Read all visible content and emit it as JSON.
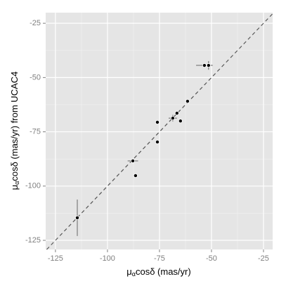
{
  "chart_data": {
    "type": "scatter",
    "x_label": [
      "μ",
      "α",
      "cosδ (mas/yr)"
    ],
    "y_label": [
      "μ",
      "α",
      "cosδ (mas/yr) from UCAC4"
    ],
    "x": [
      -114.5,
      -87.8,
      -86.5,
      -76.0,
      -76.0,
      -68.6,
      -66.6,
      -64.9,
      -61.5,
      -53.4,
      -51.4
    ],
    "values": [
      -114.6,
      -88.4,
      -95.2,
      -70.6,
      -79.7,
      -68.7,
      -66.4,
      -70.0,
      -60.9,
      -44.4,
      -44.4
    ],
    "x_err": [
      null,
      2.5,
      null,
      null,
      null,
      2,
      null,
      null,
      null,
      4,
      null
    ],
    "y_err": [
      8.4,
      null,
      null,
      null,
      null,
      1.5,
      null,
      null,
      null,
      null,
      2
    ],
    "color": "#000000",
    "xlim": [
      -129.7,
      -20.6
    ],
    "ylim": [
      -129.2,
      -20.1
    ],
    "xticks": [
      -125,
      -100,
      -75,
      -50,
      -25
    ],
    "yticks": [
      -125,
      -100,
      -75,
      -50,
      -25
    ],
    "grid": true,
    "identity_line": true
  }
}
